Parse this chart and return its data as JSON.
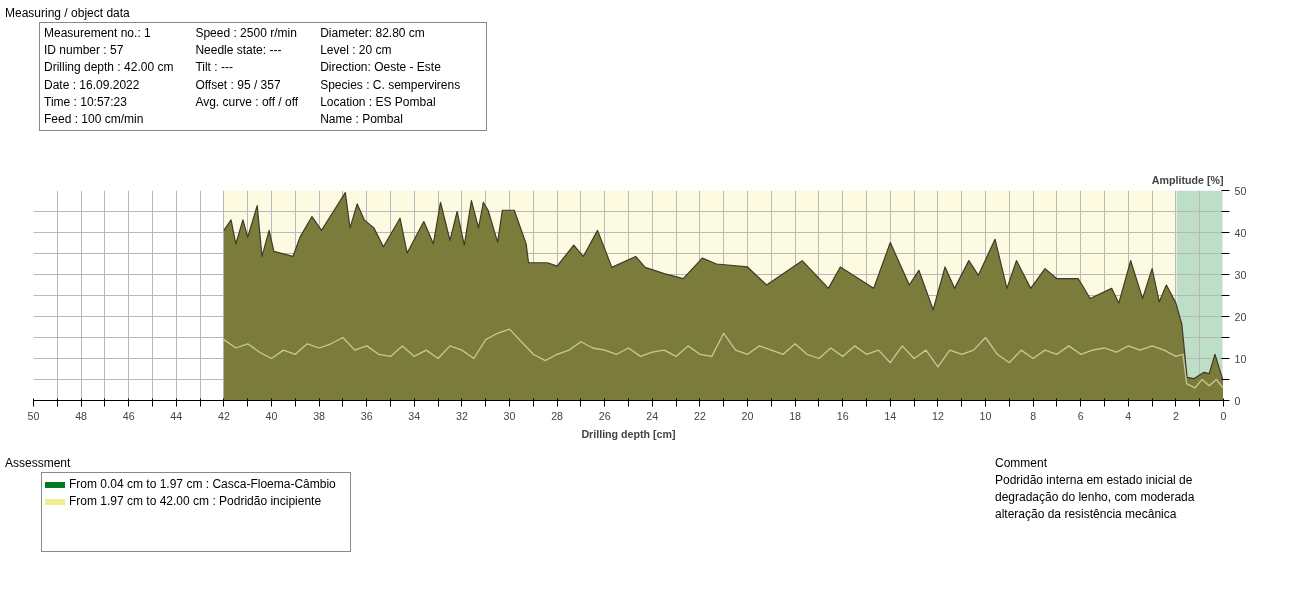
{
  "chart_data": {
    "type": "area",
    "xlabel": "Drilling depth [cm]",
    "ylabel": "Amplitude [%]",
    "xlim": [
      50,
      0
    ],
    "ylim": [
      0,
      50
    ],
    "xticks": [
      0,
      {
        "value": 1,
        "label": null
      },
      2,
      {
        "value": 3,
        "label": null
      },
      4,
      {
        "value": 5,
        "label": null
      },
      6,
      {
        "value": 7,
        "label": null
      },
      8,
      {
        "value": 9,
        "label": null
      },
      10,
      {
        "value": 11,
        "label": null
      },
      12,
      {
        "value": 13,
        "label": null
      },
      14,
      {
        "value": 15,
        "label": null
      },
      16,
      {
        "value": 17,
        "label": null
      },
      18,
      {
        "value": 19,
        "label": null
      },
      20,
      {
        "value": 21,
        "label": null
      },
      22,
      {
        "value": 23,
        "label": null
      },
      24,
      {
        "value": 25,
        "label": null
      },
      26,
      {
        "value": 27,
        "label": null
      },
      28,
      {
        "value": 29,
        "label": null
      },
      30,
      {
        "value": 31,
        "label": null
      },
      32,
      {
        "value": 33,
        "label": null
      },
      34,
      {
        "value": 35,
        "label": null
      },
      36,
      {
        "value": 37,
        "label": null
      },
      38,
      {
        "value": 39,
        "label": null
      },
      40,
      {
        "value": 41,
        "label": null
      },
      42,
      {
        "value": 43,
        "label": null
      },
      44,
      {
        "value": 45,
        "label": null
      },
      46,
      {
        "value": 47,
        "label": null
      },
      48,
      {
        "value": 49,
        "label": null
      },
      50
    ],
    "yticks": [
      0,
      {
        "value": 5,
        "label": null
      },
      10,
      {
        "value": 15,
        "label": null
      },
      20,
      {
        "value": 25,
        "label": null
      },
      30,
      {
        "value": 35,
        "label": null
      },
      40,
      {
        "value": 45,
        "label": null
      },
      50
    ],
    "grid": true,
    "legend": "bottom left",
    "series": [
      {
        "color": "#7b7b3c",
        "x": [
          42,
          41.7,
          41.5,
          41.2,
          41.0,
          40.6,
          40.4,
          40.1,
          39.9,
          39.1,
          38.8,
          38.3,
          37.9,
          37.4,
          36.9,
          36.7,
          36.4,
          36.1,
          35.7,
          35.3,
          34.6,
          34.3,
          33.6,
          33.2,
          32.9,
          32.5,
          32.2,
          31.9,
          31.6,
          31.3,
          31.1,
          30.9,
          30.5,
          30.3,
          29.8,
          29.3,
          29.2,
          28.4,
          28.0,
          27.3,
          26.9,
          26.3,
          25.7,
          24.7,
          24.3,
          23.5,
          22.7,
          21.9,
          21.3,
          20.0,
          19.2,
          17.7,
          16.6,
          16.1,
          14.7,
          14.0,
          13.2,
          12.8,
          12.2,
          11.7,
          11.3,
          10.7,
          10.3,
          9.6,
          9.1,
          8.7,
          8.1,
          7.5,
          7.0,
          6.1,
          5.6,
          4.7,
          4.4,
          3.9,
          3.4,
          3.0,
          2.7,
          2.4,
          2.0,
          1.75,
          1.53,
          1.25,
          0.82,
          0.6,
          0.36,
          0.02
        ],
        "values": [
          40.5,
          43,
          37.3,
          43,
          38.9,
          46.4,
          34.3,
          40.5,
          35.5,
          34.3,
          38.9,
          43.8,
          40.5,
          45,
          49.5,
          41.1,
          46.8,
          43,
          41.1,
          36.6,
          43.4,
          35.1,
          42.6,
          37.3,
          47.2,
          38.1,
          45,
          37,
          47.6,
          41.1,
          47.2,
          45.3,
          37.7,
          45.3,
          45.3,
          37.3,
          32.8,
          32.8,
          32,
          37,
          34.3,
          40.5,
          31.7,
          34.3,
          31.7,
          30.2,
          29,
          33.9,
          32.5,
          31.8,
          27.5,
          33.3,
          26.7,
          31.8,
          26.7,
          37.6,
          27.5,
          31,
          21.6,
          31.8,
          26.7,
          33.3,
          29.8,
          38.4,
          26.7,
          33.3,
          26.7,
          31.4,
          29,
          29,
          24.3,
          26.7,
          23.2,
          33.3,
          24.3,
          31.4,
          23.5,
          27.5,
          23.2,
          18.1,
          5.5,
          5.2,
          6.7,
          6.4,
          11,
          4.8
        ]
      },
      {
        "type": "line",
        "color": "#c9c79a",
        "x": [
          42,
          41.5,
          41,
          40.5,
          40,
          39.5,
          39,
          38.5,
          38,
          37.5,
          37,
          36.5,
          36,
          35.5,
          35,
          34.5,
          34,
          33.5,
          33,
          32.5,
          32,
          31.5,
          31,
          30.5,
          30,
          29.5,
          29,
          28.5,
          28,
          27.5,
          27,
          26.5,
          26,
          25.5,
          25,
          24.5,
          24,
          23.5,
          23,
          22.5,
          22,
          21.5,
          21,
          20.5,
          20,
          19.5,
          19,
          18.5,
          18,
          17.5,
          17,
          16.5,
          16,
          15.5,
          15,
          14.5,
          14,
          13.5,
          13,
          12.5,
          12,
          11.5,
          11,
          10.5,
          10,
          9.5,
          9,
          8.5,
          8,
          7.5,
          7,
          6.5,
          6,
          5.5,
          5,
          4.5,
          4,
          3.5,
          3,
          2.5,
          2,
          1.7,
          1.55,
          1.2,
          0.9,
          0.6,
          0.3,
          0.02
        ],
        "values": [
          14.5,
          12.5,
          13.5,
          11.5,
          10,
          12,
          11,
          13.5,
          12.5,
          13.5,
          15,
          12,
          13,
          11,
          10.5,
          13,
          10.5,
          12,
          10,
          13,
          12,
          10,
          14.5,
          16,
          17,
          14,
          11,
          9.5,
          11,
          12,
          14,
          12.5,
          12,
          11,
          12.5,
          10.5,
          11.5,
          12,
          10.5,
          13,
          11,
          10.5,
          16,
          12,
          11,
          13,
          12,
          11,
          13.5,
          11,
          10,
          12.5,
          10.5,
          13,
          11,
          12,
          9,
          13,
          10,
          12,
          8,
          12,
          11,
          12,
          15,
          11,
          9,
          12,
          10,
          12,
          11,
          13,
          11,
          12,
          12.5,
          11.5,
          13,
          12,
          13,
          12,
          10.5,
          11,
          4,
          3,
          5,
          3.5,
          5,
          3
        ]
      }
    ],
    "bands": [
      {
        "axis": "x",
        "from": 0.04,
        "to": 1.97,
        "label": "From 0.04 cm to    1.97 cm :  Casca-Floema-Câmbio",
        "color": "#007a1e"
      },
      {
        "axis": "x",
        "from": 1.97,
        "to": 42.0,
        "label": "From 1.97 cm to  42.00 cm :  Podridão incipiente",
        "color": "#f3ee8c"
      }
    ],
    "annotations": [
      "Measuring / object data",
      "Measurement no.: 1",
      "ID number : 57",
      "Drilling depth : 42.00 cm",
      "Date : 16.09.2022",
      "Time : 10:57:23",
      "Feed : 100 cm/min",
      "Speed : 2500 r/min",
      "Needle state: ---",
      "Tilt : ---",
      "Offset : 95 / 357",
      "Avg. curve : off / off",
      "Diameter: 82.80 cm",
      "Level : 20 cm",
      "Direction: Oeste - Este",
      "Species : C. sempervirens",
      "Location : ES Pombal",
      "Name : Pombal",
      "Assessment",
      "Comment",
      "Podridão interna em estado inicial de degradação do lenho, com moderada alteração da resistência mecânica"
    ]
  }
}
